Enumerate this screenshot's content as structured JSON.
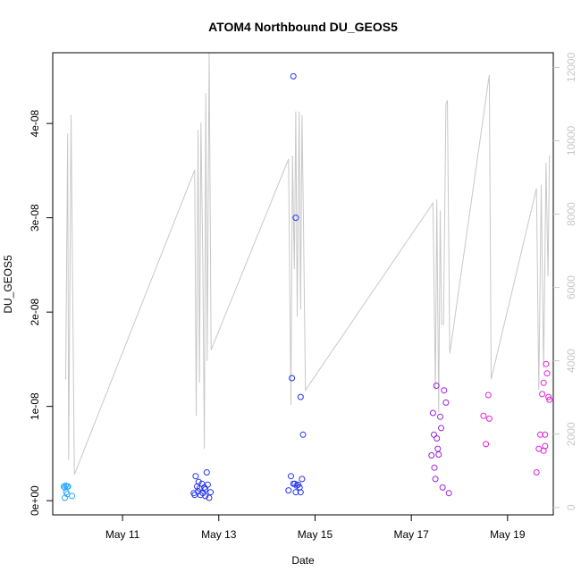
{
  "chart_data": {
    "type": "scatter",
    "title": "ATOM4 Northbound DU_GEOS5",
    "xlabel": "Date",
    "ylabel": "DU_GEOS5",
    "xlim": [
      9.55,
      19.95
    ],
    "ylim": [
      -1.5e-09,
      4.75e-08
    ],
    "y2lim": [
      -200,
      12400
    ],
    "x_ticks": [
      {
        "value": 11,
        "label": "May 11"
      },
      {
        "value": 13,
        "label": "May 13"
      },
      {
        "value": 15,
        "label": "May 15"
      },
      {
        "value": 17,
        "label": "May 17"
      },
      {
        "value": 19,
        "label": "May 19"
      }
    ],
    "y_ticks": [
      {
        "value": 0,
        "label": "0e+00"
      },
      {
        "value": 1e-08,
        "label": "1e-08"
      },
      {
        "value": 2e-08,
        "label": "2e-08"
      },
      {
        "value": 3e-08,
        "label": "3e-08"
      },
      {
        "value": 4e-08,
        "label": "4e-08"
      }
    ],
    "y2_ticks": [
      {
        "value": 0,
        "label": "0"
      },
      {
        "value": 2000,
        "label": "2000"
      },
      {
        "value": 4000,
        "label": "4000"
      },
      {
        "value": 6000,
        "label": "6000"
      },
      {
        "value": 8000,
        "label": "8000"
      },
      {
        "value": 10000,
        "label": "10000"
      },
      {
        "value": 12000,
        "label": "12000"
      }
    ],
    "altitude_series": {
      "color": "#c8c8c8",
      "points": [
        [
          9.82,
          3500
        ],
        [
          9.86,
          10200
        ],
        [
          9.88,
          1300
        ],
        [
          9.93,
          10700
        ],
        [
          10.0,
          900
        ],
        [
          12.5,
          9200
        ],
        [
          12.53,
          2500
        ],
        [
          12.57,
          10300
        ],
        [
          12.6,
          3400
        ],
        [
          12.63,
          10500
        ],
        [
          12.67,
          6500
        ],
        [
          12.7,
          1600
        ],
        [
          12.73,
          11300
        ],
        [
          12.76,
          4000
        ],
        [
          12.8,
          12400
        ],
        [
          12.84,
          4300
        ],
        [
          14.45,
          9500
        ],
        [
          14.5,
          2800
        ],
        [
          14.53,
          9600
        ],
        [
          14.57,
          6500
        ],
        [
          14.6,
          10800
        ],
        [
          14.63,
          5200
        ],
        [
          14.67,
          10800
        ],
        [
          14.7,
          5400
        ],
        [
          14.73,
          10700
        ],
        [
          14.76,
          7800
        ],
        [
          14.8,
          3200
        ],
        [
          17.45,
          8300
        ],
        [
          17.5,
          3200
        ],
        [
          17.53,
          8400
        ],
        [
          17.57,
          2600
        ],
        [
          17.6,
          8100
        ],
        [
          17.63,
          5000
        ],
        [
          17.67,
          5000
        ],
        [
          17.72,
          11000
        ],
        [
          17.75,
          11100
        ],
        [
          17.8,
          4200
        ],
        [
          18.62,
          11800
        ],
        [
          18.66,
          3500
        ],
        [
          19.6,
          8700
        ],
        [
          19.65,
          3200
        ],
        [
          19.7,
          8800
        ],
        [
          19.75,
          3800
        ],
        [
          19.8,
          9400
        ],
        [
          19.84,
          6300
        ],
        [
          19.87,
          9600
        ]
      ]
    },
    "series": [
      {
        "color": "#29a8ff",
        "points": [
          [
            9.78,
            1.5e-09
          ],
          [
            9.8,
            1.4e-09
          ],
          [
            9.82,
            1.6e-09
          ],
          [
            9.85,
            1.5e-09
          ],
          [
            9.87,
            1.5e-09
          ],
          [
            9.8,
            3e-10
          ],
          [
            9.85,
            7e-10
          ],
          [
            9.95,
            5e-10
          ],
          [
            9.83,
            9e-10
          ]
        ]
      },
      {
        "color": "#2233ee",
        "points": [
          [
            12.48,
            8e-10
          ],
          [
            12.52,
            2.6e-09
          ],
          [
            12.55,
            1.5e-09
          ],
          [
            12.57,
            1e-09
          ],
          [
            12.6,
            1.3e-09
          ],
          [
            12.62,
            6e-10
          ],
          [
            12.65,
            1.8e-09
          ],
          [
            12.67,
            8e-10
          ],
          [
            12.7,
            1.4e-09
          ],
          [
            12.72,
            5e-10
          ],
          [
            12.75,
            3e-09
          ],
          [
            12.77,
            1.7e-09
          ],
          [
            12.8,
            3e-10
          ],
          [
            12.83,
            9e-10
          ],
          [
            12.58,
            2e-09
          ],
          [
            12.5,
            6e-10
          ],
          [
            12.72,
            1.2e-09
          ],
          [
            14.45,
            1.1e-09
          ],
          [
            14.5,
            2.6e-09
          ],
          [
            14.52,
            1.3e-08
          ],
          [
            14.55,
            4.5e-08
          ],
          [
            14.58,
            1.8e-09
          ],
          [
            14.6,
            3e-08
          ],
          [
            14.62,
            1.6e-09
          ],
          [
            14.65,
            1.7e-09
          ],
          [
            14.68,
            1.4e-09
          ],
          [
            14.7,
            1.1e-08
          ],
          [
            14.73,
            2.3e-09
          ],
          [
            14.75,
            7e-09
          ],
          [
            14.6,
            9e-10
          ],
          [
            14.7,
            9e-10
          ],
          [
            14.55,
            1.8e-09
          ]
        ]
      },
      {
        "color": "#9922dd",
        "points": [
          [
            17.42,
            4.8e-09
          ],
          [
            17.45,
            9.3e-09
          ],
          [
            17.47,
            7e-09
          ],
          [
            17.48,
            3.5e-09
          ],
          [
            17.5,
            2.3e-09
          ],
          [
            17.52,
            1.22e-08
          ],
          [
            17.53,
            6.6e-09
          ],
          [
            17.55,
            5.5e-09
          ],
          [
            17.57,
            4.9e-09
          ],
          [
            17.6,
            8.9e-09
          ],
          [
            17.62,
            7.7e-09
          ],
          [
            17.65,
            1.4e-09
          ],
          [
            17.68,
            1.17e-08
          ],
          [
            17.72,
            1.04e-08
          ],
          [
            17.78,
            8e-10
          ]
        ]
      },
      {
        "color": "#e020d8",
        "points": [
          [
            18.5,
            9e-09
          ],
          [
            18.55,
            6e-09
          ],
          [
            18.6,
            1.12e-08
          ],
          [
            18.62,
            8.7e-09
          ],
          [
            19.6,
            3e-09
          ],
          [
            19.65,
            5.5e-09
          ],
          [
            19.68,
            7e-09
          ],
          [
            19.72,
            1.13e-08
          ],
          [
            19.75,
            1.25e-08
          ],
          [
            19.78,
            5.8e-09
          ],
          [
            19.8,
            1.45e-08
          ],
          [
            19.82,
            1.35e-08
          ],
          [
            19.85,
            1.1e-08
          ],
          [
            19.87,
            1.07e-08
          ],
          [
            19.78,
            7e-09
          ],
          [
            19.75,
            5.3e-09
          ]
        ]
      }
    ]
  }
}
